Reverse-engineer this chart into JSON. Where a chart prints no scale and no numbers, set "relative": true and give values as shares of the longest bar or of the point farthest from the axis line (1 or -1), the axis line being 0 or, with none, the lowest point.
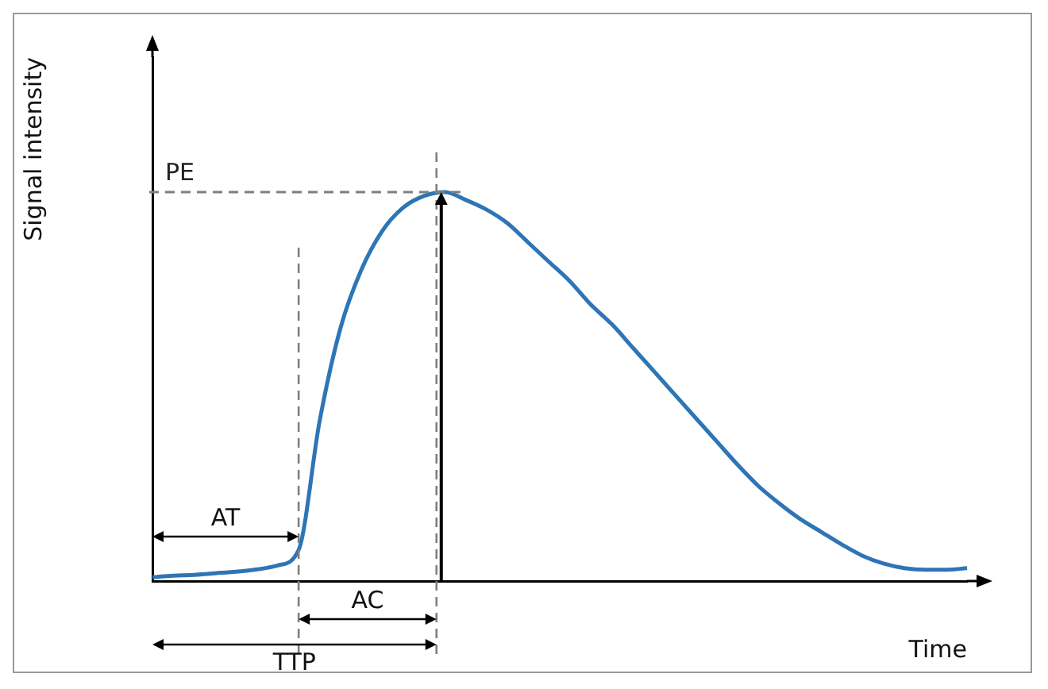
{
  "chart_data": {
    "type": "line",
    "xlabel": "Time",
    "ylabel": "Signal intensity",
    "relative": true,
    "categories": [
      null,
      null,
      null,
      null,
      null,
      null,
      null,
      null,
      null,
      null,
      null,
      null,
      null,
      null,
      null,
      null,
      null,
      null,
      null,
      null,
      null,
      null,
      null,
      null,
      null,
      null,
      null,
      null,
      null,
      null,
      null,
      null,
      null,
      null,
      null,
      null,
      null,
      null,
      null,
      null
    ],
    "series": [
      {
        "color": "#2e75b6",
        "values": [
          0.01,
          0.014,
          0.016,
          0.02,
          0.024,
          0.03,
          0.04,
          0.08,
          0.41,
          0.65,
          0.8,
          0.9,
          0.96,
          0.99,
          1.0,
          0.98,
          0.955,
          0.92,
          0.87,
          0.82,
          0.77,
          0.71,
          0.66,
          0.6,
          0.54,
          0.48,
          0.42,
          0.36,
          0.3,
          0.245,
          0.2,
          0.16,
          0.127,
          0.094,
          0.065,
          0.045,
          0.033,
          0.029,
          0.029,
          0.033
        ]
      }
    ],
    "ref_lines": [
      {
        "axis": "y",
        "value": 1,
        "label": "PE",
        "color": "#7f7f7f",
        "line_style": "dashed"
      }
    ],
    "annotations": [
      "AT",
      "AC",
      "TTP"
    ],
    "grid": false,
    "legend": false,
    "marker": "none",
    "line_style": "solid"
  }
}
